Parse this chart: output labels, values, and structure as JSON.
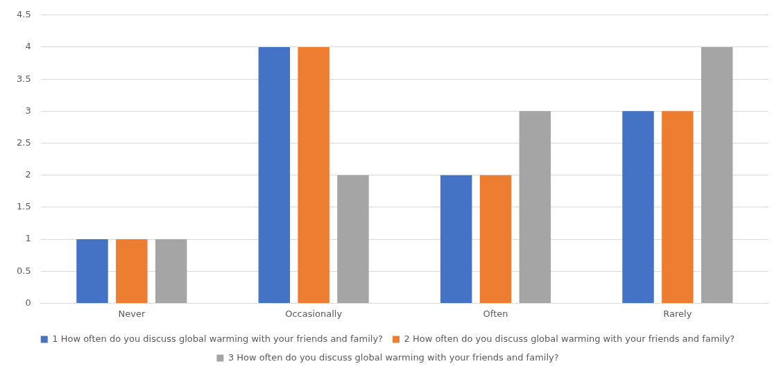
{
  "chart_data": {
    "type": "bar",
    "categories": [
      "Never",
      "Occasionally",
      "Often",
      "Rarely"
    ],
    "series": [
      {
        "name": "1 How often do you discuss global warming with your friends and family?",
        "color": "#4472c4",
        "values": [
          1,
          4,
          2,
          3
        ]
      },
      {
        "name": "2 How often do you discuss global warming with your friends and family?",
        "color": "#ed7d31",
        "values": [
          1,
          4,
          2,
          3
        ]
      },
      {
        "name": "3 How often do you discuss global warming with your friends and family?",
        "color": "#a5a5a5",
        "values": [
          1,
          2,
          3,
          4
        ]
      }
    ],
    "ylim": [
      0,
      4.5
    ],
    "yticks": [
      0,
      0.5,
      1,
      1.5,
      2,
      2.5,
      3,
      3.5,
      4,
      4.5
    ],
    "grid": "y",
    "legend": "bottom"
  }
}
